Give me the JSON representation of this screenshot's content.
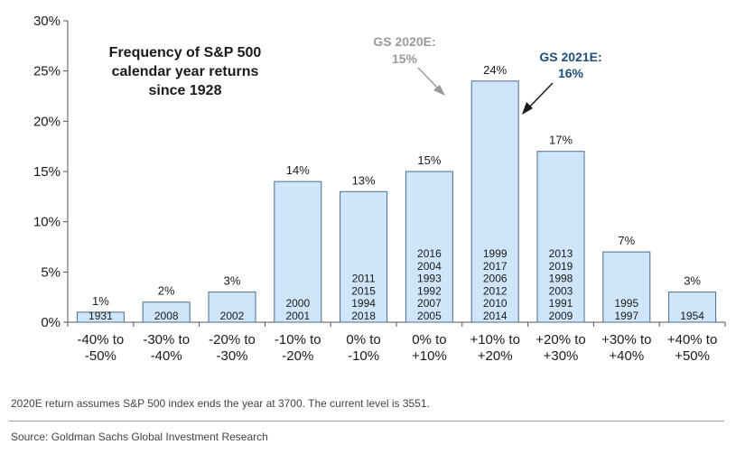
{
  "chart_data": {
    "type": "bar",
    "title": "Frequency of S&P 500 calendar year returns since 1928",
    "title_lines": [
      "Frequency of S&P 500",
      "calendar year returns",
      "since 1928"
    ],
    "xlabel": "",
    "ylabel": "",
    "ylim": [
      0,
      30
    ],
    "yticks": [
      0,
      5,
      10,
      15,
      20,
      25,
      30
    ],
    "ytick_labels": [
      "0%",
      "5%",
      "10%",
      "15%",
      "20%",
      "25%",
      "30%"
    ],
    "grid": false,
    "legend": "none",
    "bar_color": "#cfe6fa",
    "bar_edge_color": "#4a6b8a",
    "categories": [
      [
        "-40% to",
        "-50%"
      ],
      [
        "-30% to",
        "-40%"
      ],
      [
        "-20% to",
        "-30%"
      ],
      [
        "-10% to",
        "-20%"
      ],
      [
        "0% to",
        "-10%"
      ],
      [
        "0% to",
        "+10%"
      ],
      [
        "+10% to",
        "+20%"
      ],
      [
        "+20% to",
        "+30%"
      ],
      [
        "+30% to",
        "+40%"
      ],
      [
        "+40% to",
        "+50%"
      ]
    ],
    "values": [
      1,
      2,
      3,
      14,
      13,
      15,
      24,
      17,
      7,
      3
    ],
    "value_labels": [
      "1%",
      "2%",
      "3%",
      "14%",
      "13%",
      "15%",
      "24%",
      "17%",
      "7%",
      "3%"
    ],
    "years": [
      [
        "1931"
      ],
      [
        "2008"
      ],
      [
        "2002"
      ],
      [
        "2000",
        "2001"
      ],
      [
        "2011",
        "2015",
        "1994",
        "2018"
      ],
      [
        "2016",
        "2004",
        "1993",
        "1992",
        "2007",
        "2005"
      ],
      [
        "1999",
        "2017",
        "2006",
        "2012",
        "2010",
        "2014"
      ],
      [
        "2013",
        "2019",
        "1998",
        "2003",
        "1991",
        "2009"
      ],
      [
        "1995",
        "1997"
      ],
      [
        "1954"
      ]
    ],
    "annotations": [
      {
        "lines": [
          "GS 2020E:",
          "15%"
        ],
        "color": "#9a9a9a",
        "target_category": 5,
        "value": 15
      },
      {
        "lines": [
          "GS 2021E:",
          "16%"
        ],
        "color": "#1f4e79",
        "target_category": 6,
        "value": 16
      }
    ]
  },
  "footnote": "2020E return assumes S&P 500 index ends the year at 3700. The current level is 3551.",
  "source": "Source: Goldman Sachs Global Investment Research"
}
